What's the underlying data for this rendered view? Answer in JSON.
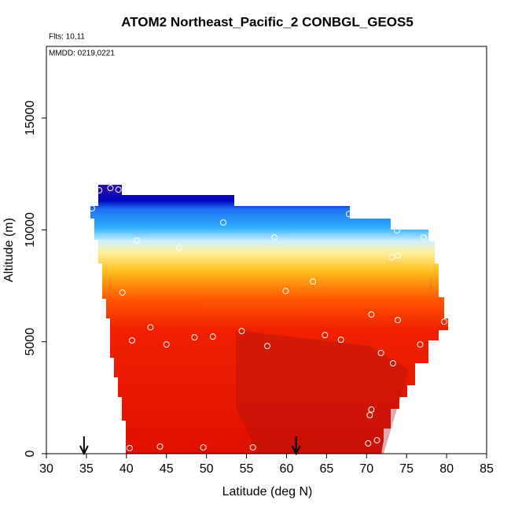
{
  "chart_data": {
    "type": "scatter",
    "title": "ATOM2 Northeast_Pacific_2 CONBGL_GEOS5",
    "annotations": [
      "Flts: 10,11",
      "MMDD: 0219,0221"
    ],
    "x_label": "Latitude (deg N)",
    "y_label": "Altitude (m)",
    "xlim": [
      30,
      85
    ],
    "ylim": [
      0,
      18200
    ],
    "xticks": [
      30,
      35,
      40,
      45,
      50,
      55,
      60,
      65,
      70,
      75,
      80,
      85
    ],
    "yticks": [
      0,
      5000,
      10000,
      15000
    ],
    "arrows_x": [
      34.7,
      61.2
    ],
    "series": [
      {
        "color": "#ffffff",
        "x": [
          36.6,
          38.0,
          39.0,
          35.7,
          52.1,
          67.8,
          73.8,
          77.1,
          78.2,
          58.5,
          41.3,
          46.6,
          73.2,
          73.9,
          63.3,
          59.9,
          39.5,
          70.6,
          73.9,
          79.7,
          43.0,
          40.7,
          54.4,
          48.5,
          50.8,
          45.0,
          57.6,
          64.8,
          66.8,
          76.7,
          71.8,
          73.3,
          70.6,
          70.4,
          40.4,
          44.2,
          49.6,
          55.8,
          70.2,
          71.3
        ],
        "values": [
          11770,
          11870,
          11800,
          10960,
          10330,
          10710,
          9980,
          9660,
          9620,
          9660,
          9520,
          9200,
          8780,
          8850,
          7690,
          7270,
          7200,
          6220,
          5970,
          5900,
          5650,
          5060,
          5480,
          5200,
          5230,
          4880,
          4810,
          5300,
          5090,
          4880,
          4500,
          4040,
          1970,
          1720,
          250,
          320,
          280,
          280,
          460,
          600
        ]
      }
    ]
  }
}
